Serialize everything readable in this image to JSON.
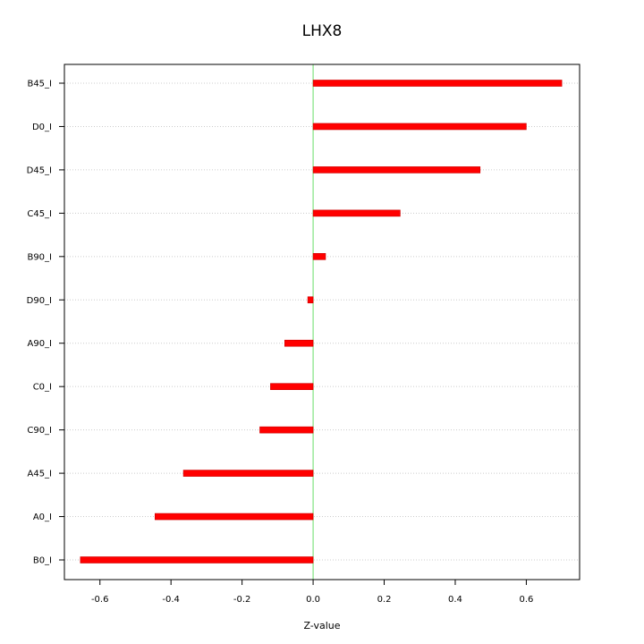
{
  "chart_data": {
    "type": "bar",
    "orientation": "horizontal",
    "title": "LHX8",
    "xlabel": "Z-value",
    "ylabel": "",
    "xlim": [
      -0.7,
      0.75
    ],
    "xticks": [
      -0.6,
      -0.4,
      -0.2,
      0.0,
      0.2,
      0.4,
      0.6
    ],
    "xtick_labels": [
      "-0.6",
      "-0.4",
      "-0.2",
      "0.0",
      "0.2",
      "0.4",
      "0.6"
    ],
    "categories": [
      "B45_I",
      "D0_I",
      "D45_I",
      "C45_I",
      "B90_I",
      "D90_I",
      "A90_I",
      "C0_I",
      "C90_I",
      "A45_I",
      "A0_I",
      "B0_I"
    ],
    "values": [
      0.7,
      0.6,
      0.47,
      0.245,
      0.035,
      -0.015,
      -0.08,
      -0.12,
      -0.15,
      -0.365,
      -0.445,
      -0.655
    ],
    "bar_color": "#ff0000",
    "bar_border_color": "#cc0000",
    "zero_line_color": "#66dd66",
    "grid": "horizontal dotted",
    "grid_color": "#cccccc"
  }
}
